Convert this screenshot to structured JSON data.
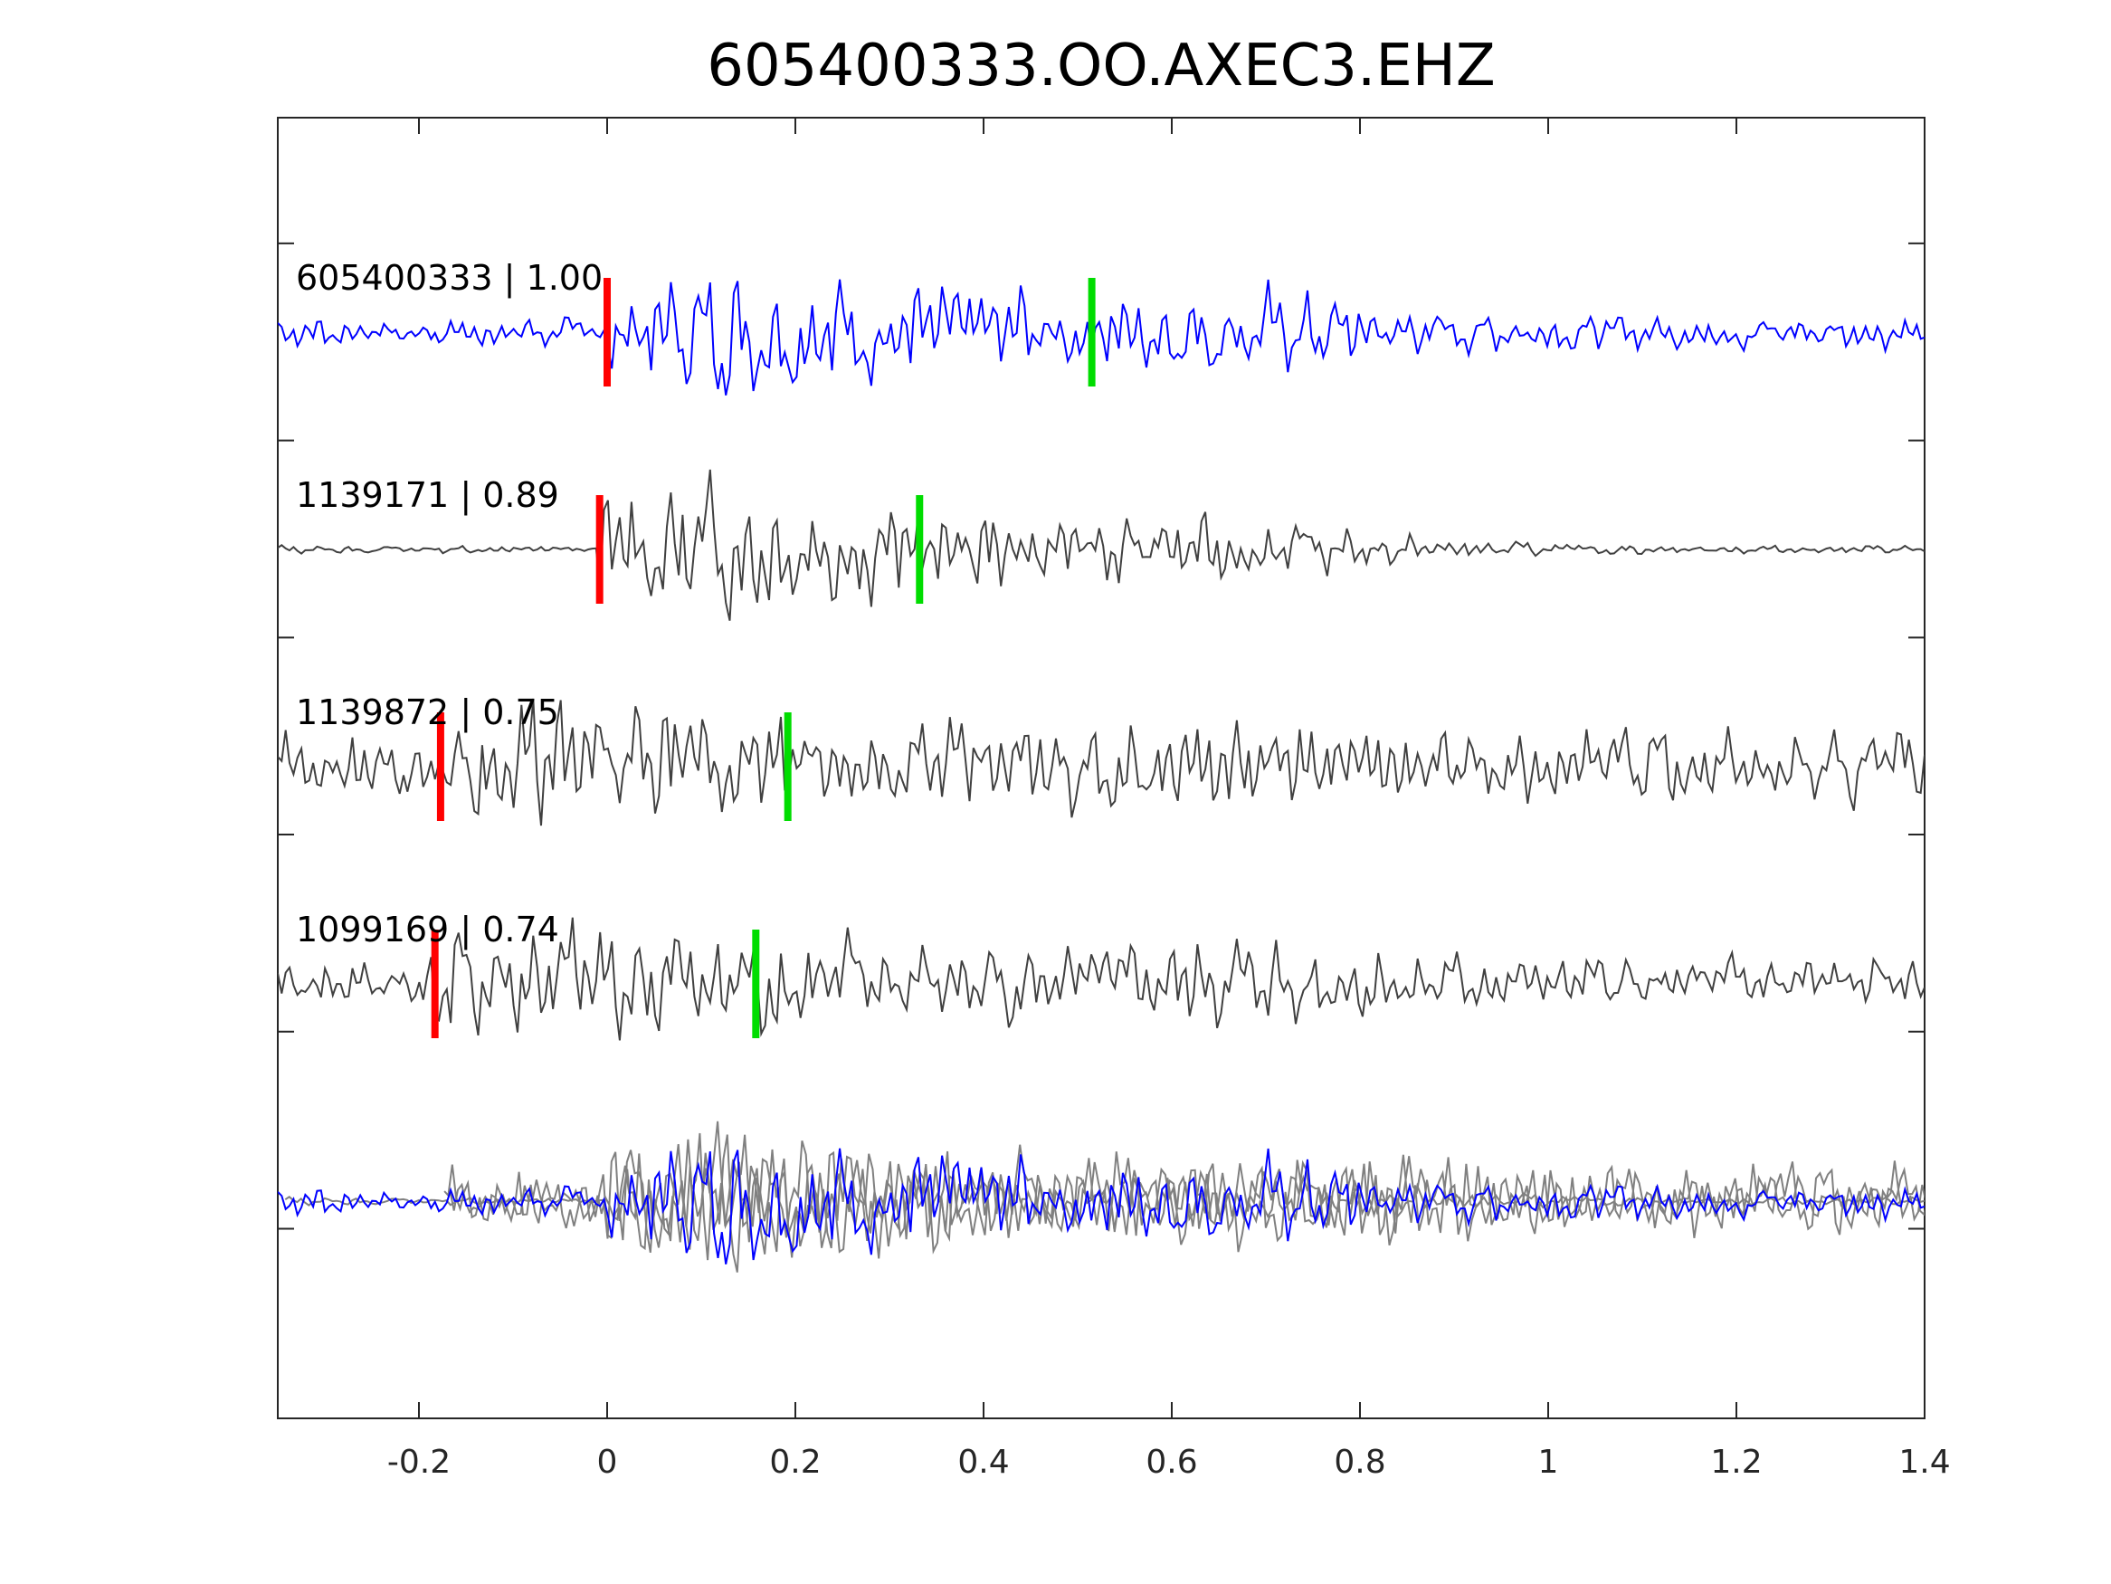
{
  "chart_data": {
    "type": "line",
    "title": "605400333.OO.AXEC3.EHZ",
    "xlabel": "",
    "ylabel": "",
    "xlim": [
      -0.35,
      1.4
    ],
    "x_ticks": [
      "-0.2",
      "0",
      "0.2",
      "0.4",
      "0.6",
      "0.8",
      "1",
      "1.2",
      "1.4"
    ],
    "x_tick_values": [
      -0.2,
      0,
      0.2,
      0.4,
      0.6,
      0.8,
      1,
      1.2,
      1.4
    ],
    "grid": false,
    "traces": [
      {
        "label": "605400333 | 1.00",
        "color": "#0000ff",
        "red_pick": 0.0,
        "green_pick": 0.515,
        "seed": 7,
        "quiet": 0.25
      },
      {
        "label": "1139171 | 0.89",
        "color": "#404040",
        "red_pick": -0.008,
        "green_pick": 0.332,
        "seed": 13,
        "quiet": 0.06
      },
      {
        "label": "1139872 | 0.75",
        "color": "#404040",
        "red_pick": -0.177,
        "green_pick": 0.192,
        "seed": 29,
        "quiet": 0.55
      },
      {
        "label": "1099169 | 0.74",
        "color": "#404040",
        "red_pick": -0.183,
        "green_pick": 0.158,
        "seed": 41,
        "quiet": 0.4
      }
    ],
    "stack": {
      "primary_color": "#0000ff",
      "others_color": "#808080"
    },
    "pick_colors": {
      "red": "#ff0000",
      "green": "#00dd00"
    }
  }
}
